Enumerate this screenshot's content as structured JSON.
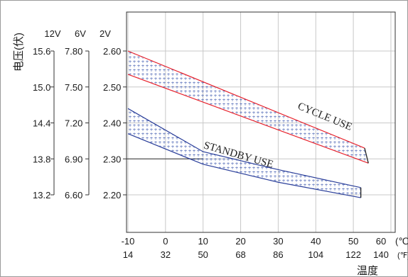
{
  "chart_data": {
    "type": "line",
    "ylabel": "电压(伏)",
    "xlabel": "温度",
    "x_unit_c": "(℃)",
    "x_unit_f": "(℉)",
    "y_scale_headers": [
      "12V",
      "6V",
      "2V"
    ],
    "x_ticks": [
      {
        "c": "-10",
        "f": "14"
      },
      {
        "c": "0",
        "f": "32"
      },
      {
        "c": "10",
        "f": "50"
      },
      {
        "c": "20",
        "f": "68"
      },
      {
        "c": "30",
        "f": "86"
      },
      {
        "c": "40",
        "f": "104"
      },
      {
        "c": "50",
        "f": "122"
      },
      {
        "c": "60",
        "f": "140"
      }
    ],
    "y_ticks": [
      {
        "v12": "15.6",
        "v6": "7.80",
        "v2": "2.60"
      },
      {
        "v12": "15.0",
        "v6": "7.50",
        "v2": "2.50"
      },
      {
        "v12": "14.4",
        "v6": "7.20",
        "v2": "2.40"
      },
      {
        "v12": "13.8",
        "v6": "6.90",
        "v2": "2.30"
      },
      {
        "v12": "13.2",
        "v6": "6.60",
        "v2": "2.20"
      }
    ],
    "xlim": [
      -10,
      60
    ],
    "ylim_2v": [
      2.15,
      2.675
    ],
    "grid": true,
    "reference_line_2v": 2.3,
    "series": [
      {
        "name": "CYCLE USE",
        "color": "#e8202a",
        "upper": [
          [
            -10,
            2.6
          ],
          [
            53,
            2.33
          ]
        ],
        "lower": [
          [
            -10,
            2.535
          ],
          [
            54,
            2.288
          ]
        ],
        "label_at": [
          35,
          2.44
        ]
      },
      {
        "name": "STANDBY USE",
        "color": "#2b3f9a",
        "upper": [
          [
            -10,
            2.44
          ],
          [
            10,
            2.32
          ],
          [
            30,
            2.27
          ],
          [
            52,
            2.22
          ]
        ],
        "lower": [
          [
            -10,
            2.37
          ],
          [
            10,
            2.285
          ],
          [
            30,
            2.235
          ],
          [
            52,
            2.192
          ]
        ],
        "label_at": [
          10,
          2.33
        ]
      }
    ]
  }
}
